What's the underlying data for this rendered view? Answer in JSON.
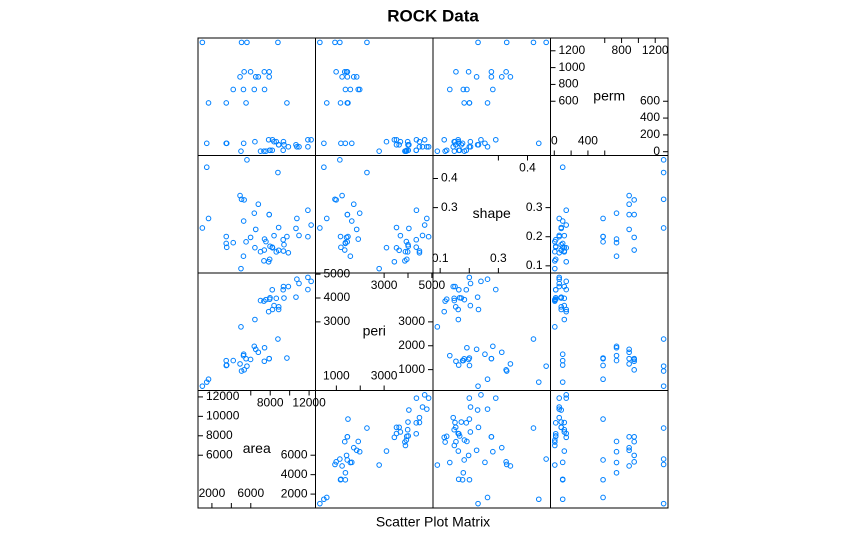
{
  "chart_data": {
    "type": "splom",
    "title": "ROCK Data",
    "xlabel": "Scatter Plot Matrix",
    "color": "#0080ff",
    "variables": [
      {
        "name": "area",
        "lim": [
          568,
          12660
        ],
        "ticks": [
          2000,
          4000,
          6000,
          8000,
          10000,
          12000
        ],
        "values": [
          4990,
          7002,
          7558,
          7352,
          7943,
          7979,
          9333,
          8209,
          8393,
          6425,
          9364,
          8624,
          10651,
          8868,
          9417,
          8874,
          10962,
          10743,
          11878,
          9867,
          7838,
          11876,
          12212,
          8233,
          6360,
          4193,
          7416,
          5246,
          6509,
          4895,
          6775,
          7894,
          5980,
          5318,
          7392,
          7894,
          3469,
          1468,
          3524,
          5267,
          5048,
          1016,
          5605,
          8793,
          3475,
          1651,
          5514,
          9718
        ]
      },
      {
        "name": "peri",
        "lim": [
          126,
          5047
        ],
        "ticks": [
          1000,
          2000,
          3000,
          4000,
          5000
        ],
        "values": [
          2791.9,
          3892.6,
          3930.66,
          3869.32,
          3948.54,
          4010.15,
          4345.75,
          4344.75,
          3682.04,
          3098.65,
          4480.05,
          3986.24,
          4036.54,
          3518.04,
          3999.37,
          3629.07,
          4608.66,
          4787.62,
          4864.22,
          4479.41,
          3428.74,
          4353.14,
          4697.65,
          3518.44,
          1977.39,
          1379.35,
          1916.24,
          1585.42,
          1851.21,
          1239.66,
          1728.14,
          1461.06,
          1426.76,
          990.388,
          1350.76,
          1461.06,
          1376.7,
          476.322,
          1189.46,
          1644.96,
          941.543,
          308.642,
          1145.69,
          2280.49,
          1174.11,
          597.808,
          1455.88,
          1485.58
        ]
      },
      {
        "name": "shape",
        "lim": [
          0.0754,
          0.479
        ],
        "ticks": [
          0.1,
          0.2,
          0.3,
          0.4
        ],
        "values": [
          0.0903,
          0.1486,
          0.1833,
          0.1171,
          0.1224,
          0.167,
          0.1897,
          0.1641,
          0.2037,
          0.1624,
          0.1509,
          0.1481,
          0.2286,
          0.2316,
          0.1726,
          0.1535,
          0.2043,
          0.2627,
          0.2001,
          0.1448,
          0.1139,
          0.291,
          0.2401,
          0.1619,
          0.2809,
          0.1795,
          0.1918,
          0.1331,
          0.2252,
          0.3413,
          0.3116,
          0.276,
          0.1977,
          0.3266,
          0.1542,
          0.276,
          0.177,
          0.4387,
          0.1636,
          0.2538,
          0.3286,
          0.2301,
          0.4641,
          0.4205,
          0.2007,
          0.2627,
          0.1825,
          0.2004
        ]
      },
      {
        "name": "perm",
        "lim": [
          -45,
          1352
        ],
        "ticks": [
          0,
          200,
          400,
          600,
          800,
          1000,
          1200
        ],
        "values": [
          6.3,
          6.3,
          6.3,
          6.3,
          17.1,
          17.1,
          17.1,
          17.1,
          119,
          119,
          119,
          119,
          82.4,
          82.4,
          82.4,
          82.4,
          58.6,
          58.6,
          58.6,
          58.6,
          142,
          142,
          142,
          142,
          740,
          740,
          740,
          740,
          890,
          890,
          890,
          890,
          950,
          950,
          950,
          950,
          100,
          100,
          100,
          100,
          1300,
          1300,
          1300,
          1300,
          580,
          580,
          580,
          580
        ]
      }
    ]
  }
}
